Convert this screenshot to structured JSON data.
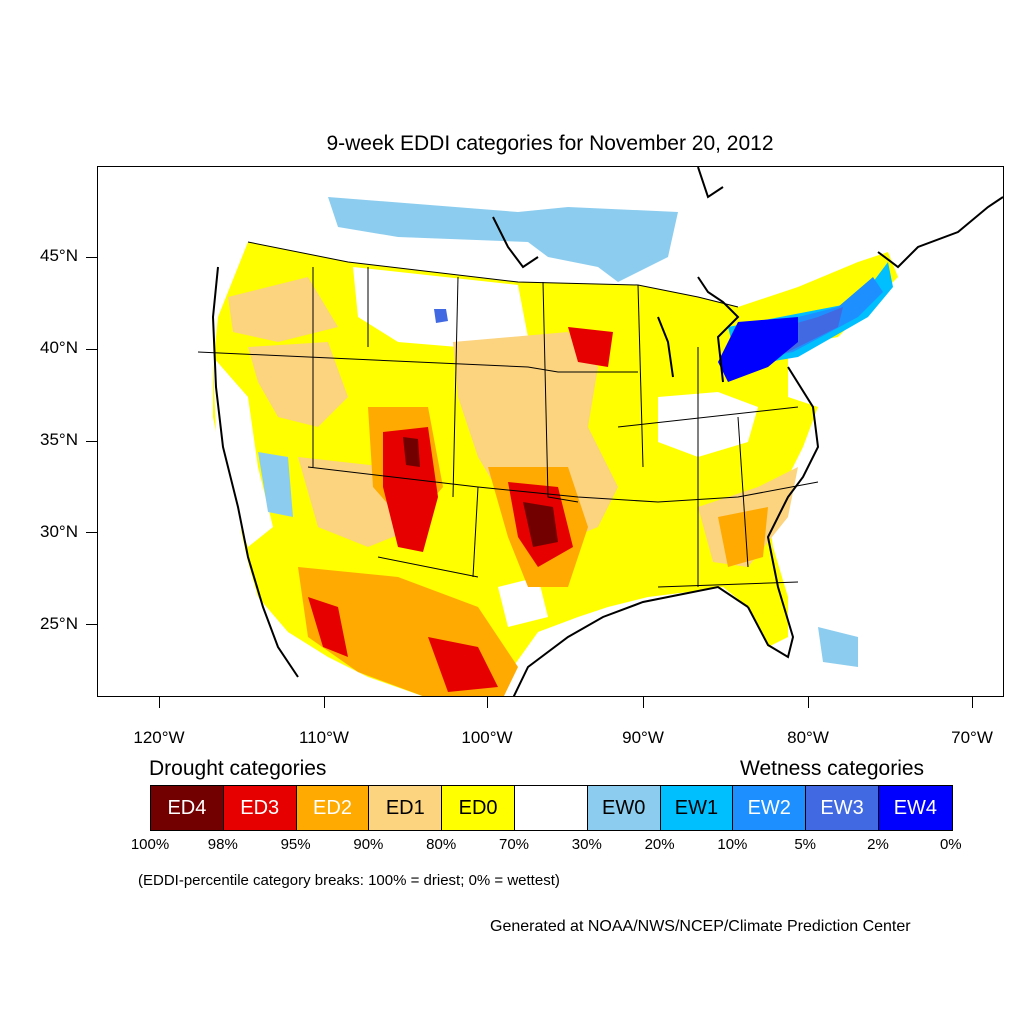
{
  "title": "9-week EDDI categories for November 20, 2012",
  "y_axis": {
    "ticks": [
      "45°N",
      "40°N",
      "35°N",
      "30°N",
      "25°N"
    ]
  },
  "x_axis": {
    "ticks": [
      "120°W",
      "110°W",
      "100°W",
      "90°W",
      "80°W",
      "70°W"
    ]
  },
  "legend": {
    "drought_label": "Drought categories",
    "wetness_label": "Wetness categories",
    "categories": [
      {
        "label": "ED4",
        "color": "#730000",
        "text_color": "#ffffff"
      },
      {
        "label": "ED3",
        "color": "#e60000",
        "text_color": "#ffffff"
      },
      {
        "label": "ED2",
        "color": "#ffaa00",
        "text_color": "#ffffff"
      },
      {
        "label": "ED1",
        "color": "#fcd37f",
        "text_color": "#000000"
      },
      {
        "label": "ED0",
        "color": "#ffff00",
        "text_color": "#000000"
      },
      {
        "label": "",
        "color": "#ffffff",
        "text_color": "#000000"
      },
      {
        "label": "EW0",
        "color": "#8ccdef",
        "text_color": "#000000"
      },
      {
        "label": "EW1",
        "color": "#00bfff",
        "text_color": "#000000"
      },
      {
        "label": "EW2",
        "color": "#1d8fff",
        "text_color": "#ffffff"
      },
      {
        "label": "EW3",
        "color": "#4169e1",
        "text_color": "#ffffff"
      },
      {
        "label": "EW4",
        "color": "#0000ff",
        "text_color": "#ffffff"
      }
    ],
    "breaks": [
      "100%",
      "98%",
      "95%",
      "90%",
      "80%",
      "70%",
      "30%",
      "20%",
      "10%",
      "5%",
      "2%",
      "0%"
    ]
  },
  "note": "(EDDI-percentile category breaks: 100% = driest; 0% = wettest)",
  "credit": "Generated at NOAA/NWS/NCEP/Climate Prediction Center"
}
